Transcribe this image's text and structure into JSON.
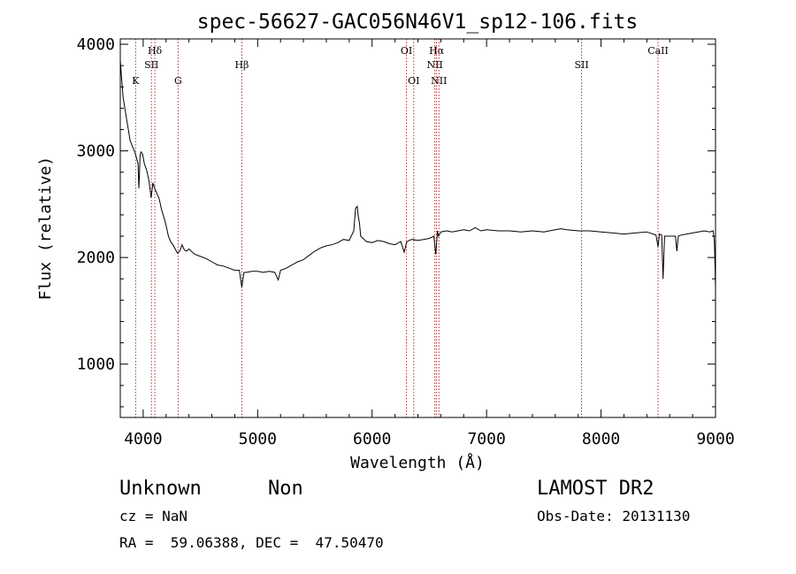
{
  "chart_data": {
    "type": "line",
    "title": "spec-56627-GAC056N46V1_sp12-106.fits",
    "xlabel": "Wavelength (Å)",
    "ylabel": "Flux (relative)",
    "xlim": [
      3800,
      9000
    ],
    "ylim": [
      500,
      4050
    ],
    "x_ticks": [
      4000,
      5000,
      6000,
      7000,
      8000,
      9000
    ],
    "y_ticks": [
      1000,
      2000,
      3000,
      4000
    ],
    "x_tick_labels": [
      "4000",
      "5000",
      "6000",
      "7000",
      "8000",
      "9000"
    ],
    "y_tick_labels": [
      "1000",
      "2000",
      "3000",
      "4000"
    ],
    "grid": false,
    "line_color": "#000000",
    "marker_color": "#b03030",
    "series": [
      {
        "x": [
          3800,
          3810,
          3825,
          3840,
          3855,
          3870,
          3885,
          3900,
          3915,
          3930,
          3945,
          3955,
          3962,
          3968,
          3972,
          3980,
          3995,
          4010,
          4030,
          4050,
          4070,
          4085,
          4100,
          4120,
          4140,
          4160,
          4180,
          4200,
          4220,
          4240,
          4260,
          4280,
          4300,
          4320,
          4340,
          4360,
          4380,
          4400,
          4450,
          4500,
          4550,
          4600,
          4650,
          4700,
          4750,
          4800,
          4840,
          4862,
          4880,
          4900,
          4950,
          5000,
          5050,
          5100,
          5150,
          5180,
          5200,
          5250,
          5300,
          5350,
          5400,
          5450,
          5500,
          5550,
          5600,
          5650,
          5700,
          5750,
          5800,
          5840,
          5855,
          5870,
          5880,
          5890,
          5900,
          5920,
          5950,
          6000,
          6050,
          6100,
          6150,
          6200,
          6250,
          6280,
          6300,
          6320,
          6350,
          6400,
          6450,
          6500,
          6540,
          6555,
          6563,
          6570,
          6580,
          6600,
          6650,
          6700,
          6750,
          6800,
          6850,
          6900,
          6950,
          7000,
          7100,
          7200,
          7300,
          7400,
          7500,
          7600,
          7650,
          7700,
          7800,
          7900,
          8000,
          8100,
          8200,
          8300,
          8400,
          8480,
          8498,
          8510,
          8530,
          8542,
          8555,
          8580,
          8620,
          8650,
          8662,
          8675,
          8700,
          8750,
          8800,
          8850,
          8900,
          8950,
          8980,
          8990,
          8995,
          9000
        ],
        "y": [
          3850,
          3700,
          3500,
          3400,
          3300,
          3200,
          3100,
          3060,
          3020,
          2980,
          2920,
          2880,
          2650,
          2780,
          2950,
          2990,
          2970,
          2880,
          2820,
          2720,
          2560,
          2700,
          2650,
          2600,
          2550,
          2450,
          2380,
          2300,
          2200,
          2150,
          2120,
          2080,
          2040,
          2060,
          2120,
          2070,
          2060,
          2080,
          2030,
          2010,
          1990,
          1960,
          1930,
          1920,
          1900,
          1880,
          1880,
          1720,
          1860,
          1860,
          1870,
          1870,
          1860,
          1870,
          1860,
          1790,
          1880,
          1900,
          1930,
          1960,
          1980,
          2020,
          2060,
          2090,
          2110,
          2120,
          2140,
          2170,
          2160,
          2250,
          2460,
          2480,
          2380,
          2320,
          2200,
          2180,
          2150,
          2140,
          2160,
          2150,
          2130,
          2120,
          2150,
          2050,
          2140,
          2160,
          2170,
          2160,
          2170,
          2180,
          2200,
          2030,
          2130,
          2250,
          2200,
          2240,
          2250,
          2240,
          2250,
          2260,
          2250,
          2280,
          2250,
          2260,
          2250,
          2250,
          2240,
          2250,
          2240,
          2260,
          2270,
          2260,
          2250,
          2250,
          2240,
          2230,
          2220,
          2230,
          2240,
          2210,
          2100,
          2220,
          2210,
          1800,
          2200,
          2200,
          2200,
          2200,
          2060,
          2200,
          2210,
          2220,
          2230,
          2240,
          2250,
          2240,
          2250,
          2150,
          1950,
          1700
        ]
      }
    ],
    "lines": [
      {
        "label": "K",
        "x": 3934,
        "row": "lower"
      },
      {
        "label": "Hδ",
        "x": 4102,
        "row": "top"
      },
      {
        "label": "SII",
        "x": 4072,
        "row": "mid"
      },
      {
        "label": "G",
        "x": 4305,
        "row": "lower"
      },
      {
        "label": "Hβ",
        "x": 4862,
        "row": "mid"
      },
      {
        "label": "OI",
        "x": 6300,
        "row": "top"
      },
      {
        "label": "OI",
        "x": 6364,
        "row": "lower"
      },
      {
        "label": "Hα",
        "x": 6563,
        "row": "top"
      },
      {
        "label": "NII",
        "x": 6548,
        "row": "mid"
      },
      {
        "label": "NII",
        "x": 6584,
        "row": "lower"
      },
      {
        "label": "SII",
        "x": 7830,
        "row": "mid"
      },
      {
        "label": "CaII",
        "x": 8498,
        "row": "top"
      }
    ]
  },
  "footer": {
    "object_class": "Unknown",
    "object_subclass": "Non",
    "survey": "LAMOST DR2",
    "cz": "cz = NaN",
    "obs_date": "Obs-Date: 20131130",
    "coords": "RA =  59.06388, DEC =  47.50470"
  }
}
